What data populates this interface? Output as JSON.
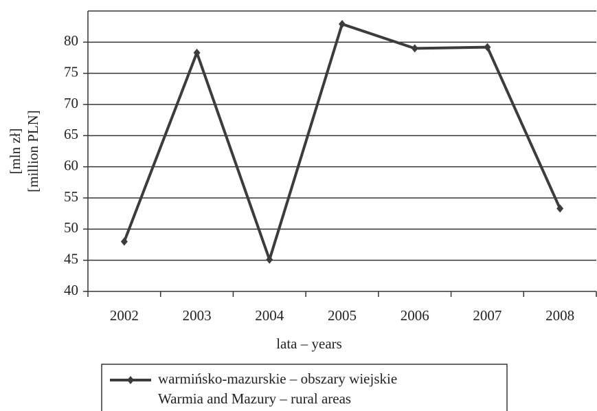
{
  "chart_data": {
    "type": "line",
    "y_label": [
      "[mln zł]",
      "[million PLN]"
    ],
    "x_label": "lata – years",
    "categories": [
      "2002",
      "2003",
      "2004",
      "2005",
      "2006",
      "2007",
      "2008"
    ],
    "series": [
      {
        "name": "warmińsko-mazurskie – obszary wiejskie",
        "name_en": "Warmia and Mazury – rural areas",
        "color": "#3c3c3c",
        "values": [
          48,
          78.3,
          45.1,
          82.9,
          79.0,
          79.2,
          53.3
        ]
      }
    ],
    "ylim": [
      40,
      85
    ],
    "yticks": [
      40,
      45,
      50,
      55,
      60,
      65,
      70,
      75,
      80
    ],
    "grid": true
  }
}
